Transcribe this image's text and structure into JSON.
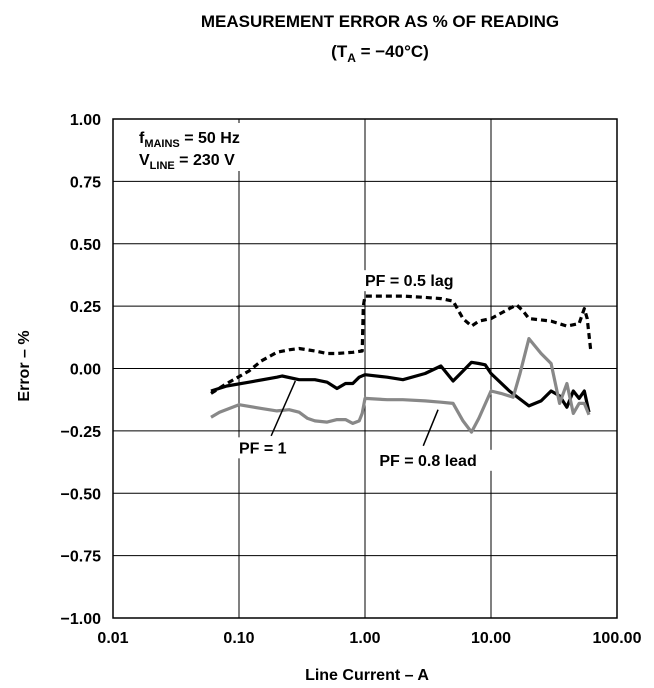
{
  "chart_data": {
    "type": "line",
    "title_line1": "MEASUREMENT ERROR AS % OF READING",
    "title_line2_prefix": "(T",
    "title_line2_sub": "A",
    "title_line2_suffix": " = −40°C)",
    "xlabel": "Line Current – A",
    "ylabel": "Error – %",
    "x_scale": "log",
    "xlim": [
      0.01,
      100
    ],
    "ylim": [
      -1.0,
      1.0
    ],
    "grid": true,
    "x_ticks": [
      0.01,
      0.1,
      1,
      10,
      100
    ],
    "x_tick_labels": [
      "0.01",
      "0.10",
      "1.00",
      "10.00",
      "100.00"
    ],
    "y_ticks": [
      1.0,
      0.75,
      0.5,
      0.25,
      0.0,
      -0.25,
      -0.5,
      -0.75,
      -1.0
    ],
    "y_tick_labels": [
      "1.00",
      "0.75",
      "0.50",
      "0.25",
      "0.00",
      "−0.25",
      "−0.50",
      "−0.75",
      "−1.00"
    ],
    "conditions": [
      {
        "name": "f",
        "sub": "MAINS",
        "value": " = 50 Hz"
      },
      {
        "name": "V",
        "sub": "LINE",
        "value": " = 230 V"
      }
    ],
    "series": [
      {
        "name": "PF = 1",
        "color": "#000000",
        "style": "solid",
        "points": [
          [
            0.06,
            -0.09
          ],
          [
            0.08,
            -0.07
          ],
          [
            0.12,
            -0.055
          ],
          [
            0.2,
            -0.035
          ],
          [
            0.22,
            -0.03
          ],
          [
            0.3,
            -0.045
          ],
          [
            0.4,
            -0.045
          ],
          [
            0.5,
            -0.055
          ],
          [
            0.6,
            -0.08
          ],
          [
            0.7,
            -0.06
          ],
          [
            0.8,
            -0.06
          ],
          [
            0.9,
            -0.035
          ],
          [
            1.0,
            -0.025
          ],
          [
            1.5,
            -0.035
          ],
          [
            2.0,
            -0.045
          ],
          [
            3.0,
            -0.02
          ],
          [
            4.0,
            0.01
          ],
          [
            5.0,
            -0.05
          ],
          [
            6.0,
            -0.01
          ],
          [
            7.0,
            0.025
          ],
          [
            8.0,
            0.02
          ],
          [
            9.0,
            0.015
          ],
          [
            10.0,
            -0.02
          ],
          [
            14.0,
            -0.09
          ],
          [
            20.0,
            -0.15
          ],
          [
            25.0,
            -0.13
          ],
          [
            30.0,
            -0.09
          ],
          [
            35.0,
            -0.11
          ],
          [
            40.0,
            -0.155
          ],
          [
            45.0,
            -0.09
          ],
          [
            50.0,
            -0.12
          ],
          [
            55.0,
            -0.09
          ],
          [
            60.0,
            -0.175
          ]
        ]
      },
      {
        "name": "PF = 0.5 lag",
        "color": "#000000",
        "style": "dashed",
        "points": [
          [
            0.06,
            -0.1
          ],
          [
            0.08,
            -0.06
          ],
          [
            0.12,
            -0.01
          ],
          [
            0.15,
            0.03
          ],
          [
            0.2,
            0.065
          ],
          [
            0.25,
            0.075
          ],
          [
            0.3,
            0.08
          ],
          [
            0.4,
            0.07
          ],
          [
            0.5,
            0.06
          ],
          [
            0.6,
            0.06
          ],
          [
            0.8,
            0.065
          ],
          [
            0.95,
            0.07
          ],
          [
            0.97,
            0.25
          ],
          [
            1.0,
            0.29
          ],
          [
            1.5,
            0.29
          ],
          [
            2.0,
            0.29
          ],
          [
            3.0,
            0.285
          ],
          [
            4.0,
            0.28
          ],
          [
            5.0,
            0.27
          ],
          [
            6.0,
            0.2
          ],
          [
            7.0,
            0.17
          ],
          [
            8.0,
            0.19
          ],
          [
            10.0,
            0.2
          ],
          [
            14.0,
            0.24
          ],
          [
            16.0,
            0.255
          ],
          [
            18.0,
            0.23
          ],
          [
            20.0,
            0.2
          ],
          [
            30.0,
            0.19
          ],
          [
            40.0,
            0.17
          ],
          [
            50.0,
            0.18
          ],
          [
            55.0,
            0.24
          ],
          [
            58.0,
            0.2
          ],
          [
            62.0,
            0.07
          ]
        ]
      },
      {
        "name": "PF = 0.8 lead",
        "color": "#888888",
        "style": "solid",
        "points": [
          [
            0.06,
            -0.195
          ],
          [
            0.07,
            -0.175
          ],
          [
            0.1,
            -0.145
          ],
          [
            0.15,
            -0.16
          ],
          [
            0.2,
            -0.17
          ],
          [
            0.25,
            -0.165
          ],
          [
            0.3,
            -0.175
          ],
          [
            0.35,
            -0.2
          ],
          [
            0.4,
            -0.21
          ],
          [
            0.5,
            -0.215
          ],
          [
            0.6,
            -0.205
          ],
          [
            0.7,
            -0.205
          ],
          [
            0.8,
            -0.22
          ],
          [
            0.9,
            -0.21
          ],
          [
            0.95,
            -0.18
          ],
          [
            1.0,
            -0.12
          ],
          [
            1.5,
            -0.125
          ],
          [
            2.0,
            -0.125
          ],
          [
            3.0,
            -0.13
          ],
          [
            4.0,
            -0.135
          ],
          [
            5.0,
            -0.14
          ],
          [
            6.0,
            -0.21
          ],
          [
            7.0,
            -0.255
          ],
          [
            8.0,
            -0.2
          ],
          [
            10.0,
            -0.09
          ],
          [
            12.0,
            -0.1
          ],
          [
            15.0,
            -0.115
          ],
          [
            17.0,
            -0.02
          ],
          [
            20.0,
            0.12
          ],
          [
            25.0,
            0.06
          ],
          [
            30.0,
            0.02
          ],
          [
            35.0,
            -0.14
          ],
          [
            40.0,
            -0.06
          ],
          [
            45.0,
            -0.18
          ],
          [
            50.0,
            -0.14
          ],
          [
            55.0,
            -0.14
          ],
          [
            60.0,
            -0.185
          ]
        ]
      }
    ],
    "annotations": [
      {
        "text": "PF = 0.5 lag",
        "x": 1.0,
        "y": 0.33
      },
      {
        "text": "PF = 1",
        "x": 0.1,
        "y": -0.34
      },
      {
        "text": "PF = 0.8 lead",
        "x": 1.3,
        "y": -0.39
      }
    ],
    "leaders": [
      {
        "from": [
          0.18,
          -0.27
        ],
        "to": [
          0.28,
          -0.05
        ]
      },
      {
        "from": [
          2.9,
          -0.31
        ],
        "to": [
          3.8,
          -0.165
        ]
      }
    ]
  }
}
